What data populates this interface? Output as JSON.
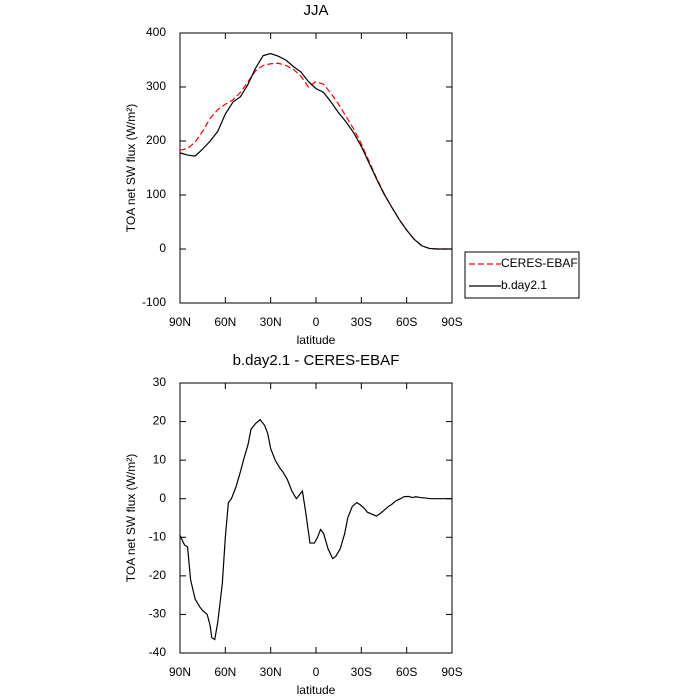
{
  "chart_data": [
    {
      "type": "line",
      "title": "JJA",
      "xlabel": "latitude",
      "ylabel": "TOA net SW flux (W/m²)",
      "xlim": [
        90,
        -90
      ],
      "xticks": [
        {
          "value": 90,
          "label": "90N"
        },
        {
          "value": 60,
          "label": "60N"
        },
        {
          "value": 30,
          "label": "30N"
        },
        0,
        {
          "value": -30,
          "label": "30S"
        },
        {
          "value": -60,
          "label": "60S"
        },
        {
          "value": -90,
          "label": "90S"
        }
      ],
      "ylim": [
        -100,
        400
      ],
      "yticks": [
        -100,
        0,
        100,
        200,
        300,
        400
      ],
      "x": [
        90,
        85,
        80,
        75,
        70,
        65,
        60,
        55,
        50,
        45,
        40,
        35,
        30,
        25,
        20,
        15,
        10,
        5,
        0,
        -5,
        -10,
        -15,
        -20,
        -25,
        -30,
        -35,
        -40,
        -45,
        -50,
        -55,
        -60,
        -65,
        -70,
        -75,
        -80,
        -85,
        -90
      ],
      "series": [
        {
          "name": "CERES-EBAF",
          "color": "#ff0000",
          "linestyle": "dashed",
          "values": [
            183,
            186,
            198,
            218,
            242,
            258,
            268,
            276,
            290,
            310,
            330,
            340,
            343,
            344,
            340,
            333,
            320,
            300,
            310,
            305,
            288,
            268,
            245,
            222,
            195,
            163,
            132,
            103,
            78,
            55,
            35,
            18,
            6,
            1,
            0,
            0,
            0
          ]
        },
        {
          "name": "b.day2.1",
          "color": "#000000",
          "linestyle": "solid",
          "values": [
            178,
            174,
            172,
            185,
            200,
            218,
            250,
            272,
            282,
            305,
            335,
            358,
            362,
            357,
            350,
            338,
            328,
            310,
            297,
            290,
            272,
            252,
            235,
            215,
            190,
            160,
            130,
            102,
            78,
            55,
            35,
            18,
            6,
            1,
            0,
            0,
            0
          ]
        }
      ],
      "legend": "right"
    },
    {
      "type": "line",
      "title": "b.day2.1 - CERES-EBAF",
      "xlabel": "latitude",
      "ylabel": "TOA net SW flux (W/m²)",
      "xlim": [
        90,
        -90
      ],
      "xticks": [
        {
          "value": 90,
          "label": "90N"
        },
        {
          "value": 60,
          "label": "60N"
        },
        {
          "value": 30,
          "label": "30N"
        },
        0,
        {
          "value": -30,
          "label": "30S"
        },
        {
          "value": -60,
          "label": "60S"
        },
        {
          "value": -90,
          "label": "90S"
        }
      ],
      "ylim": [
        -40,
        30
      ],
      "yticks": [
        -40,
        -30,
        -20,
        -10,
        0,
        10,
        20,
        30
      ],
      "x": [
        90,
        87,
        85,
        83,
        80,
        77,
        75,
        72,
        70,
        69,
        67,
        65,
        62,
        60,
        58,
        56,
        53,
        50,
        48,
        45,
        43,
        40,
        37,
        34,
        32,
        30,
        27,
        24,
        22,
        19,
        16,
        13,
        11,
        9,
        7,
        4,
        1,
        -1,
        -3,
        -5,
        -8,
        -11,
        -13,
        -16,
        -19,
        -21,
        -24,
        -27,
        -29,
        -32,
        -34,
        -37,
        -40,
        -42,
        -45,
        -48,
        -50,
        -53,
        -56,
        -58,
        -61,
        -64,
        -66,
        -69,
        -72,
        -76,
        -90
      ],
      "series": [
        {
          "name": "b.day2.1 - CERES-EBAF",
          "color": "#000000",
          "linestyle": "solid",
          "values": [
            -9.5,
            -12,
            -12.5,
            -21,
            -26,
            -28,
            -29,
            -30,
            -33,
            -36,
            -36.5,
            -32,
            -22,
            -10,
            -1,
            0,
            3,
            7,
            10,
            14,
            18,
            19.5,
            20.5,
            19,
            17,
            13,
            10,
            8,
            7,
            5,
            2,
            0,
            1,
            2,
            -3,
            -11.5,
            -11.5,
            -10,
            -8,
            -9,
            -13,
            -15.5,
            -15,
            -13,
            -9,
            -5,
            -2,
            -1,
            -1.5,
            -2.5,
            -3.5,
            -4,
            -4.5,
            -4,
            -3,
            -2,
            -1.5,
            -0.5,
            0,
            0.5,
            0.6,
            0.3,
            0.5,
            0.3,
            0.2,
            0,
            0
          ]
        }
      ]
    }
  ]
}
